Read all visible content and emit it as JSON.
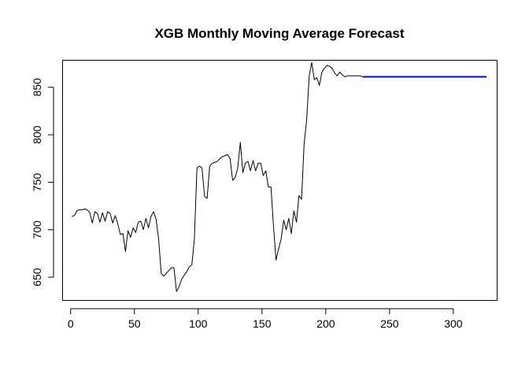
{
  "chart_data": {
    "type": "line",
    "title": "XGB Monthly Moving Average Forecast",
    "xlabel": "",
    "ylabel": "",
    "xlim": [
      -6,
      334
    ],
    "ylim": [
      626,
      878
    ],
    "xticks": [
      0,
      50,
      100,
      150,
      200,
      250,
      300
    ],
    "yticks": [
      650,
      700,
      750,
      800,
      850
    ],
    "grid": false,
    "legend": "none",
    "series": [
      {
        "color": "#000000",
        "x": [
          1,
          3,
          5,
          7,
          9,
          11,
          13,
          15,
          17,
          19,
          21,
          23,
          25,
          27,
          29,
          31,
          33,
          35,
          37,
          39,
          41,
          43,
          45,
          47,
          49,
          51,
          53,
          55,
          57,
          59,
          61,
          63,
          65,
          67,
          69,
          71,
          73,
          75,
          77,
          79,
          81,
          83,
          85,
          87,
          89,
          91,
          93,
          95,
          97,
          99,
          101,
          103,
          105,
          107,
          109,
          111,
          113,
          115,
          117,
          119,
          121,
          123,
          125,
          127,
          129,
          131,
          133,
          135,
          137,
          139,
          141,
          143,
          145,
          147,
          149,
          151,
          153,
          155,
          157,
          159,
          161,
          163,
          165,
          167,
          169,
          171,
          173,
          175,
          177,
          179,
          181,
          183,
          185,
          187,
          189,
          191,
          193,
          195,
          197,
          199,
          201,
          203,
          205,
          207,
          209,
          211,
          213,
          215,
          217,
          219,
          221,
          223,
          225,
          227,
          229
        ],
        "y": [
          714,
          715,
          720,
          721,
          721,
          722,
          721,
          718,
          707,
          719,
          717,
          708,
          718,
          709,
          719,
          717,
          707,
          715,
          706,
          695,
          696,
          677,
          699,
          692,
          702,
          697,
          708,
          709,
          700,
          712,
          702,
          714,
          719,
          711,
          690,
          654,
          651,
          654,
          657,
          660,
          660,
          635,
          640,
          648,
          652,
          656,
          661,
          663,
          690,
          765,
          767,
          765,
          735,
          733,
          767,
          770,
          771,
          772,
          775,
          777,
          778,
          779,
          775,
          752,
          755,
          765,
          792,
          760,
          770,
          772,
          762,
          773,
          762,
          770,
          770,
          757,
          762,
          745,
          745,
          704,
          668,
          680,
          690,
          710,
          700,
          712,
          696,
          720,
          708,
          736,
          732,
          790,
          815,
          862,
          876,
          858,
          860,
          852,
          866,
          870,
          873,
          872,
          870,
          865,
          862,
          866,
          863,
          861,
          862,
          862,
          862,
          862,
          862,
          862,
          861
        ]
      },
      {
        "color": "#0000ff",
        "x": [
          229,
          326
        ],
        "y": [
          861,
          861
        ]
      }
    ]
  }
}
